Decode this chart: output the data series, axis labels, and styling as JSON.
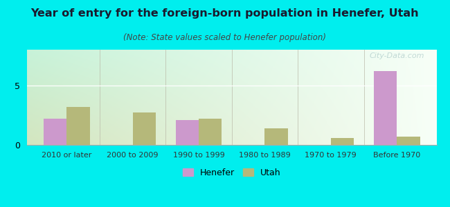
{
  "title": "Year of entry for the foreign-born population in Henefer, Utah",
  "subtitle": "(Note: State values scaled to Henefer population)",
  "categories": [
    "2010 or later",
    "2000 to 2009",
    "1990 to 1999",
    "1980 to 1989",
    "1970 to 1979",
    "Before 1970"
  ],
  "henefer_values": [
    2.2,
    0.0,
    2.1,
    0.0,
    0.0,
    6.2
  ],
  "utah_values": [
    3.2,
    2.7,
    2.2,
    1.4,
    0.6,
    0.7
  ],
  "henefer_color": "#cc99cc",
  "utah_color": "#b5b87a",
  "bg_color": "#00eeee",
  "ylim": [
    0,
    8
  ],
  "bar_width": 0.35,
  "legend_labels": [
    "Henefer",
    "Utah"
  ],
  "watermark": "City-Data.com",
  "title_fontsize": 11.5,
  "subtitle_fontsize": 8.5
}
